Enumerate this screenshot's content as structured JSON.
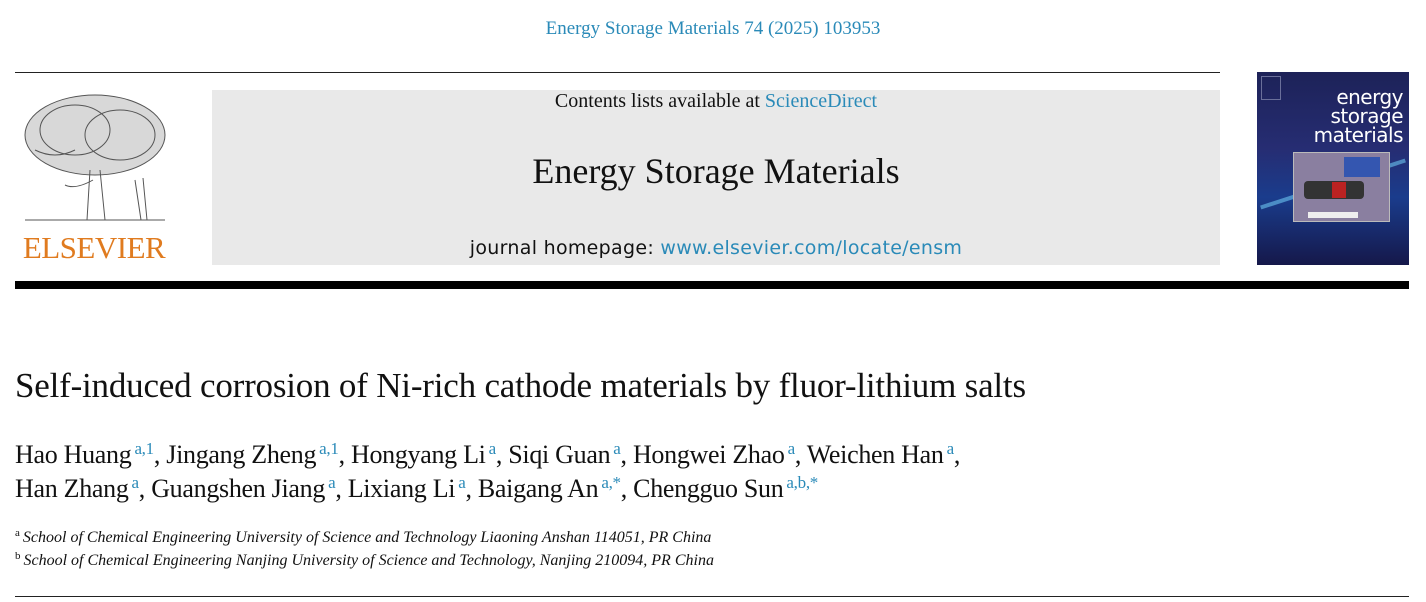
{
  "citation": "Energy Storage Materials 74 (2025) 103953",
  "publisher_logo_text": "ELSEVIER",
  "banner": {
    "contents_prefix": "Contents lists available at ",
    "contents_link": "ScienceDirect",
    "journal_name": "Energy Storage Materials",
    "homepage_prefix": "journal homepage: ",
    "homepage_link": "www.elsevier.com/locate/ensm"
  },
  "cover": {
    "title_lines": [
      "energy",
      "storage",
      "materials"
    ]
  },
  "article": {
    "title": "Self-induced corrosion of Ni-rich cathode materials by fluor-lithium salts",
    "authors": [
      {
        "name": "Hao Huang",
        "sup": "a,1"
      },
      {
        "name": "Jingang Zheng",
        "sup": "a,1"
      },
      {
        "name": "Hongyang Li",
        "sup": "a"
      },
      {
        "name": "Siqi Guan",
        "sup": "a"
      },
      {
        "name": "Hongwei Zhao",
        "sup": "a"
      },
      {
        "name": "Weichen Han",
        "sup": "a"
      },
      {
        "name": "Han Zhang",
        "sup": "a"
      },
      {
        "name": "Guangshen Jiang",
        "sup": "a"
      },
      {
        "name": "Lixiang Li",
        "sup": "a"
      },
      {
        "name": "Baigang An",
        "sup": "a,*"
      },
      {
        "name": "Chengguo Sun",
        "sup": "a,b,*"
      }
    ],
    "affiliations": [
      {
        "label": "a",
        "text": "School of Chemical Engineering University of Science and Technology Liaoning Anshan 114051, PR China"
      },
      {
        "label": "b",
        "text": "School of Chemical Engineering Nanjing University of Science and Technology, Nanjing 210094, PR China"
      }
    ]
  },
  "colors": {
    "link": "#2a8ab8",
    "elsevier_orange": "#e07b1f",
    "banner_bg": "#e9e9e9"
  }
}
